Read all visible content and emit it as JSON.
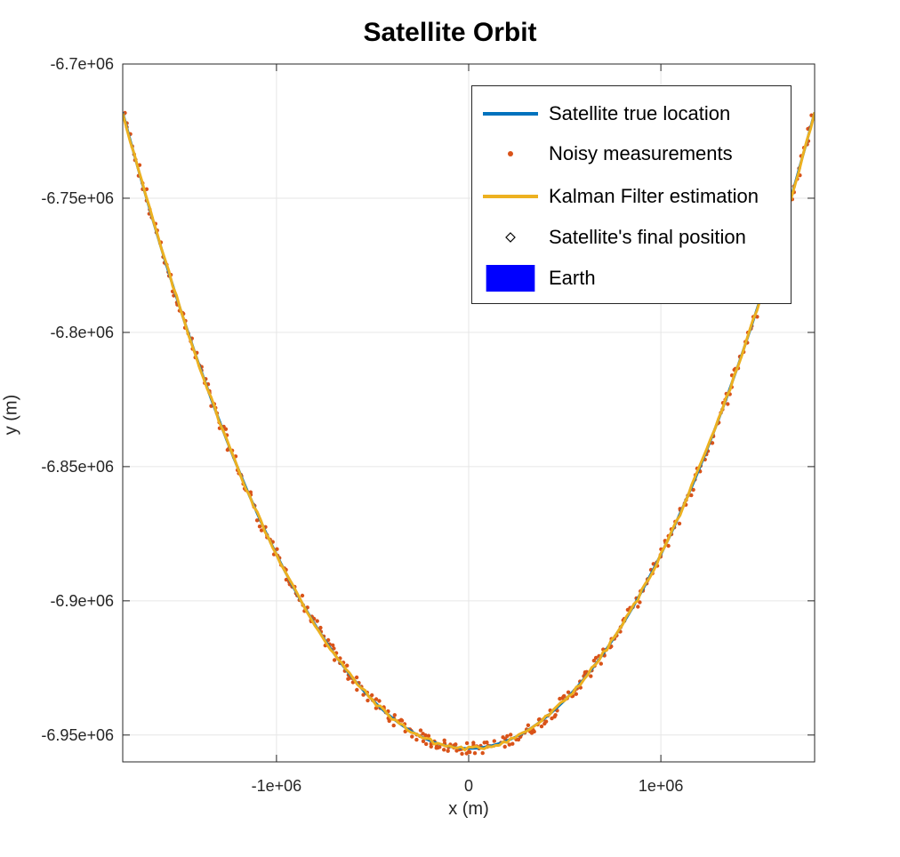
{
  "title": "Satellite Orbit",
  "chart_data": {
    "type": "line",
    "title": "Satellite Orbit",
    "xlabel": "x (m)",
    "ylabel": "y (m)",
    "xlim": [
      -1800000,
      1800000
    ],
    "ylim": [
      -6960000,
      -6700000
    ],
    "grid": true,
    "legend_position": "top-right",
    "x_ticks": [
      -1000000,
      0,
      1000000
    ],
    "x_tick_labels": [
      "-1e+06",
      "0",
      "1e+06"
    ],
    "y_ticks": [
      -6700000,
      -6750000,
      -6800000,
      -6850000,
      -6900000,
      -6950000
    ],
    "y_tick_labels": [
      "-6.7e+06",
      "-6.75e+06",
      "-6.8e+06",
      "-6.85e+06",
      "-6.9e+06",
      "-6.95e+06"
    ],
    "curve_note": "Orbit arc approximated by circle of radius ~6955000 m centered at origin",
    "series": [
      {
        "name": "Satellite true location",
        "style": "line",
        "color": "#0072BD",
        "x": [
          -1800000,
          -1700000,
          -1600000,
          -1500000,
          -1400000,
          -1300000,
          -1200000,
          -1100000,
          -1000000,
          -900000,
          -800000,
          -700000,
          -600000,
          -500000,
          -400000,
          -300000,
          -200000,
          -100000,
          0,
          100000,
          200000,
          300000,
          400000,
          500000,
          600000,
          700000,
          800000,
          900000,
          1000000,
          1100000,
          1200000,
          1300000,
          1400000,
          1500000,
          1600000,
          1700000,
          1800000
        ],
        "y": [
          -6718000,
          -6744000,
          -6769000,
          -6792000,
          -6813000,
          -6833000,
          -6851000,
          -6867000,
          -6883000,
          -6897000,
          -6909000,
          -6920000,
          -6929000,
          -6937000,
          -6944000,
          -6948000,
          -6952000,
          -6954000,
          -6955000,
          -6954000,
          -6952000,
          -6948000,
          -6944000,
          -6937000,
          -6929000,
          -6920000,
          -6909000,
          -6897000,
          -6883000,
          -6867000,
          -6851000,
          -6833000,
          -6813000,
          -6792000,
          -6769000,
          -6744000,
          -6718000
        ]
      },
      {
        "name": "Noisy measurements",
        "style": "markers",
        "color": "#D95319"
      },
      {
        "name": "Kalman Filter estimation",
        "style": "line",
        "color": "#EDB120"
      },
      {
        "name": "Satellite's final position",
        "style": "diamond-marker",
        "color": "#000000"
      },
      {
        "name": "Earth",
        "style": "filled-patch",
        "color": "#0000FF"
      }
    ]
  }
}
